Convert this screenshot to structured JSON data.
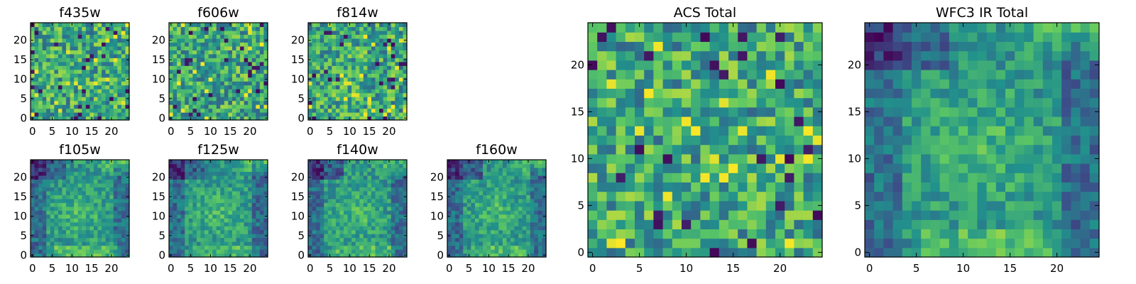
{
  "figure": {
    "colormap": [
      "#440154",
      "#3b528b",
      "#21918c",
      "#5ec962",
      "#fde725"
    ]
  },
  "chart_data": [
    {
      "type": "heatmap",
      "title": "f435w",
      "grid_size": 25,
      "texture": "noise",
      "seed": 11,
      "xlim": [
        -0.5,
        24.5
      ],
      "ylim": [
        -0.5,
        24.5
      ],
      "xticks": [
        "0",
        "5",
        "10",
        "15",
        "20"
      ],
      "yticks": [
        "0",
        "5",
        "10",
        "15",
        "20"
      ]
    },
    {
      "type": "heatmap",
      "title": "f606w",
      "grid_size": 25,
      "texture": "noise",
      "seed": 23,
      "xlim": [
        -0.5,
        24.5
      ],
      "ylim": [
        -0.5,
        24.5
      ],
      "xticks": [
        "0",
        "5",
        "10",
        "15",
        "20"
      ],
      "yticks": [
        "0",
        "5",
        "10",
        "15",
        "20"
      ]
    },
    {
      "type": "heatmap",
      "title": "f814w",
      "grid_size": 25,
      "texture": "noise",
      "seed": 37,
      "xlim": [
        -0.5,
        24.5
      ],
      "ylim": [
        -0.5,
        24.5
      ],
      "xticks": [
        "0",
        "5",
        "10",
        "15",
        "20"
      ],
      "yticks": [
        "0",
        "5",
        "10",
        "15",
        "20"
      ]
    },
    {
      "type": "heatmap",
      "title": "f105w",
      "grid_size": 25,
      "texture": "smooth",
      "seed": 41,
      "xlim": [
        -0.5,
        24.5
      ],
      "ylim": [
        -0.5,
        24.5
      ],
      "xticks": [
        "0",
        "5",
        "10",
        "15",
        "20"
      ],
      "yticks": [
        "0",
        "5",
        "10",
        "15",
        "20"
      ]
    },
    {
      "type": "heatmap",
      "title": "f125w",
      "grid_size": 25,
      "texture": "smooth",
      "seed": 53,
      "xlim": [
        -0.5,
        24.5
      ],
      "ylim": [
        -0.5,
        24.5
      ],
      "xticks": [
        "0",
        "5",
        "10",
        "15",
        "20"
      ],
      "yticks": [
        "0",
        "5",
        "10",
        "15",
        "20"
      ]
    },
    {
      "type": "heatmap",
      "title": "f140w",
      "grid_size": 25,
      "texture": "smooth",
      "seed": 67,
      "xlim": [
        -0.5,
        24.5
      ],
      "ylim": [
        -0.5,
        24.5
      ],
      "xticks": [
        "0",
        "5",
        "10",
        "15",
        "20"
      ],
      "yticks": [
        "0",
        "5",
        "10",
        "15",
        "20"
      ]
    },
    {
      "type": "heatmap",
      "title": "f160w",
      "grid_size": 25,
      "texture": "smooth",
      "seed": 79,
      "xlim": [
        -0.5,
        24.5
      ],
      "ylim": [
        -0.5,
        24.5
      ],
      "xticks": [
        "0",
        "5",
        "10",
        "15",
        "20"
      ],
      "yticks": [
        "0",
        "5",
        "10",
        "15",
        "20"
      ]
    },
    {
      "type": "heatmap",
      "title": "ACS Total",
      "grid_size": 25,
      "texture": "noise",
      "seed": 97,
      "xlim": [
        -0.5,
        24.5
      ],
      "ylim": [
        -0.5,
        24.5
      ],
      "xticks": [
        "0",
        "5",
        "10",
        "15",
        "20"
      ],
      "yticks": [
        "0",
        "5",
        "10",
        "15",
        "20"
      ]
    },
    {
      "type": "heatmap",
      "title": "WFC3 IR Total",
      "grid_size": 25,
      "texture": "smooth",
      "seed": 131,
      "xlim": [
        -0.5,
        24.5
      ],
      "ylim": [
        -0.5,
        24.5
      ],
      "xticks": [
        "0",
        "5",
        "10",
        "15",
        "20"
      ],
      "yticks": [
        "0",
        "5",
        "10",
        "15",
        "20"
      ]
    }
  ]
}
